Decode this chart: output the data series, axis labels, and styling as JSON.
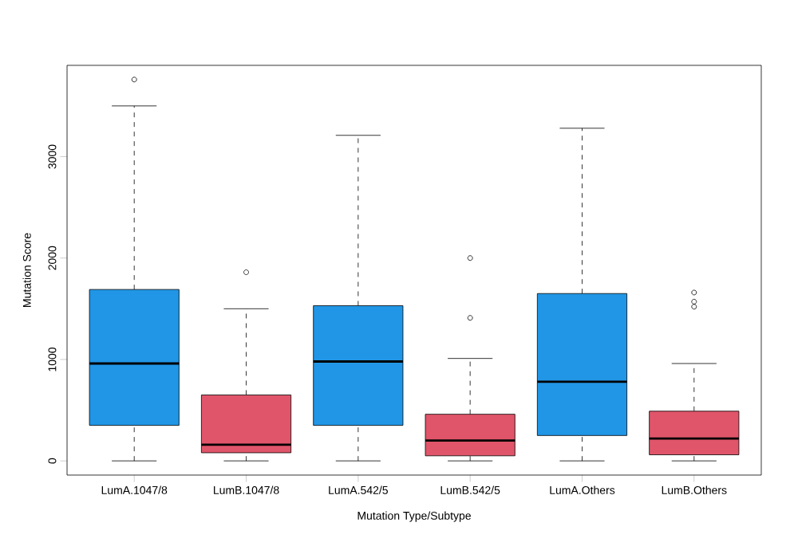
{
  "chart_data": {
    "type": "box",
    "xlabel": "Mutation Type/Subtype",
    "ylabel": "Mutation Score",
    "categories": [
      "LumA.1047/8",
      "LumB.1047/8",
      "LumA.542/5",
      "LumB.542/5",
      "LumA.Others",
      "LumB.Others"
    ],
    "colors": [
      "#2196e6",
      "#e0556a",
      "#2196e6",
      "#e0556a",
      "#2196e6",
      "#e0556a"
    ],
    "boxes": [
      {
        "low": 0,
        "q1": 350,
        "median": 960,
        "q3": 1690,
        "high": 3500,
        "outliers": [
          3760
        ]
      },
      {
        "low": 0,
        "q1": 80,
        "median": 160,
        "q3": 650,
        "high": 1500,
        "outliers": [
          1860
        ]
      },
      {
        "low": 0,
        "q1": 350,
        "median": 980,
        "q3": 1530,
        "high": 3210
      },
      {
        "low": 0,
        "q1": 50,
        "median": 200,
        "q3": 460,
        "high": 1010,
        "outliers": [
          1410,
          2000
        ]
      },
      {
        "low": 0,
        "q1": 250,
        "median": 780,
        "q3": 1650,
        "high": 3280
      },
      {
        "low": 0,
        "q1": 60,
        "median": 220,
        "q3": 490,
        "high": 960,
        "outliers": [
          1520,
          1570,
          1660
        ]
      }
    ],
    "ylim": [
      -140,
      3900
    ],
    "yticks": [
      0,
      1000,
      2000,
      3000
    ],
    "grid": false
  }
}
